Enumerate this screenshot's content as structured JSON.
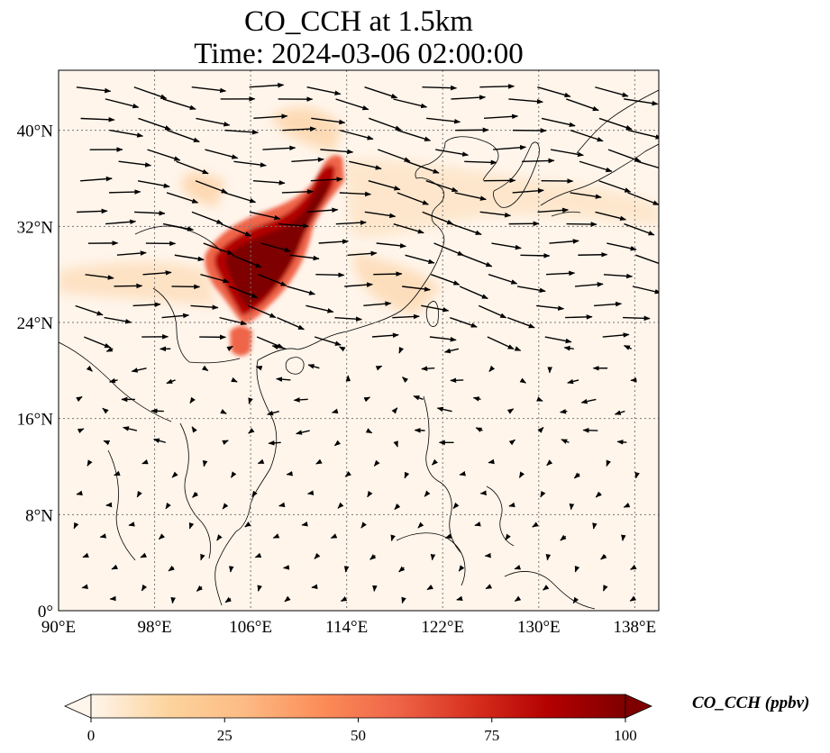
{
  "title_line1": "CO_CCH at 1.5km",
  "title_line2": "Time: 2024-03-06 02:00:00",
  "map": {
    "lon_range": [
      90,
      140
    ],
    "lat_range": [
      0,
      45
    ],
    "x_ticks": [
      {
        "value": 90,
        "label": "90°E"
      },
      {
        "value": 98,
        "label": "98°E"
      },
      {
        "value": 106,
        "label": "106°E"
      },
      {
        "value": 114,
        "label": "114°E"
      },
      {
        "value": 122,
        "label": "122°E"
      },
      {
        "value": 130,
        "label": "130°E"
      },
      {
        "value": 138,
        "label": "138°E"
      }
    ],
    "y_ticks": [
      {
        "value": 0,
        "label": "0°"
      },
      {
        "value": 8,
        "label": "8°N"
      },
      {
        "value": 16,
        "label": "16°N"
      },
      {
        "value": 24,
        "label": "24°N"
      },
      {
        "value": 32,
        "label": "32°N"
      },
      {
        "value": 40,
        "label": "40°N"
      }
    ],
    "gridlines": true,
    "background_color": "#fff5eb",
    "plume_color": "#7f0000"
  },
  "colorbar": {
    "label": "CO_CCH (ppbv)",
    "min": 0,
    "max": 100,
    "ticks": [
      {
        "value": 0,
        "label": "0"
      },
      {
        "value": 25,
        "label": "25"
      },
      {
        "value": 50,
        "label": "50"
      },
      {
        "value": 75,
        "label": "75"
      },
      {
        "value": 100,
        "label": "100"
      }
    ],
    "colors": [
      "#fff5eb",
      "#fdd49e",
      "#fdbb84",
      "#fc8d59",
      "#ef6548",
      "#d7301f",
      "#b30000",
      "#7f0000"
    ],
    "extend": "both"
  }
}
